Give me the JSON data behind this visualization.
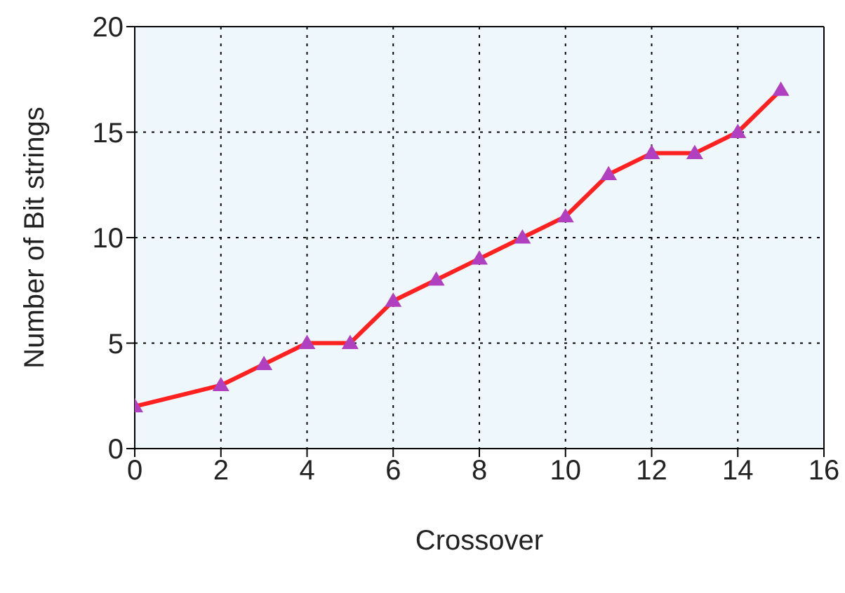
{
  "chart_data": {
    "type": "line",
    "xlabel": "Crossover",
    "ylabel": "Number of Bit strings",
    "x": [
      0,
      2,
      3,
      4,
      5,
      6,
      7,
      8,
      9,
      10,
      11,
      12,
      13,
      14,
      15
    ],
    "series": [
      {
        "color": "#ff2020",
        "values": [
          2,
          3,
          4,
          5,
          5,
          7,
          8,
          9,
          10,
          11,
          13,
          14,
          14,
          15,
          17
        ]
      }
    ],
    "xlim": [
      0,
      16
    ],
    "xticks": [
      0,
      2,
      4,
      6,
      8,
      10,
      12,
      14,
      16
    ],
    "ylim": [
      0,
      20
    ],
    "yticks": [
      0,
      5,
      10,
      15,
      20
    ],
    "grid": true,
    "marker": "triangle",
    "line_style": "solid"
  }
}
